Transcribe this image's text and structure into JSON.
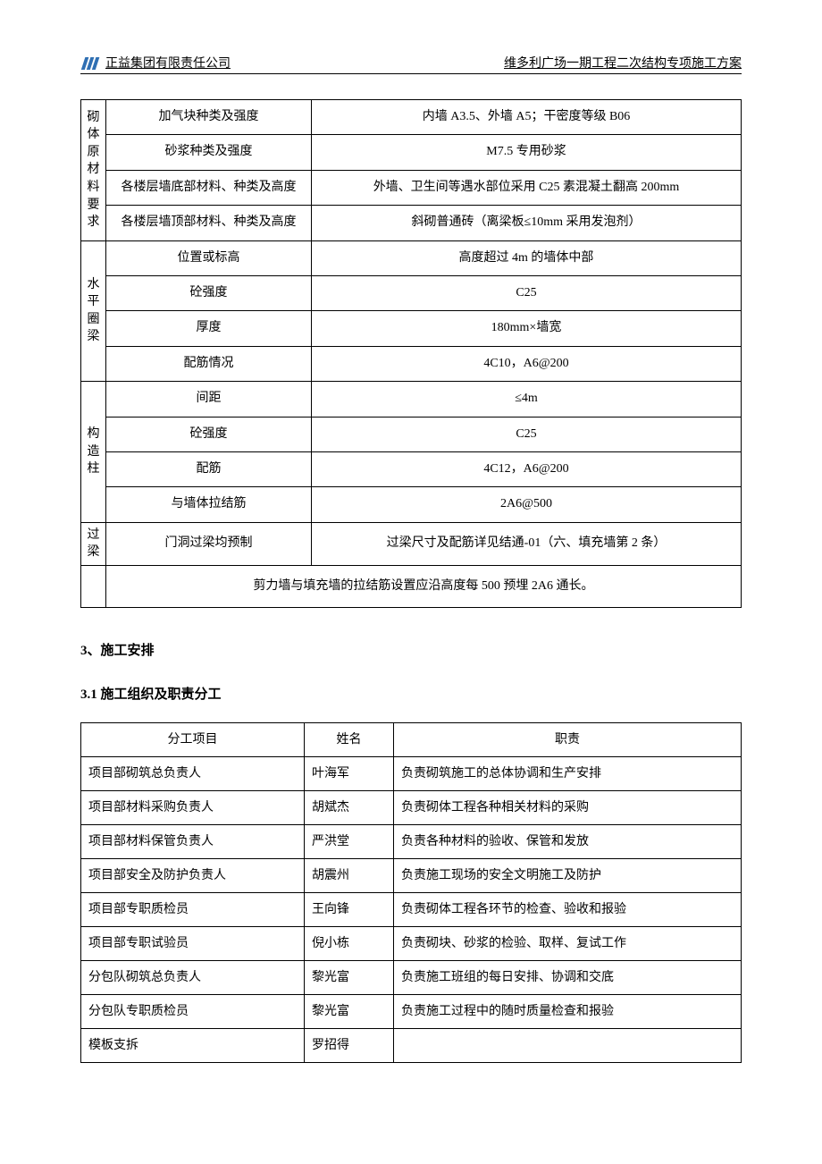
{
  "header": {
    "company": "正益集团有限责任公司",
    "project": "维多利广场一期工程二次结构专项施工方案",
    "logo_color_left": "#2f6fb3",
    "logo_color_right": "#2f6fb3"
  },
  "spec_table": {
    "groups": [
      {
        "label": "砌\n体\n原\n材\n料\n要\n求",
        "rows": [
          {
            "param": "加气块种类及强度",
            "value": "内墙 A3.5、外墙 A5；干密度等级 B06"
          },
          {
            "param": "砂浆种类及强度",
            "value": "M7.5 专用砂浆"
          },
          {
            "param": "各楼层墙底部材料、种类及高度",
            "value": "外墙、卫生间等遇水部位采用 C25 素混凝土翻高 200mm"
          },
          {
            "param": "各楼层墙顶部材料、种类及高度",
            "value": "斜砌普通砖（离梁板≤10mm 采用发泡剂）"
          }
        ]
      },
      {
        "label": "水\n平\n圈\n梁",
        "rows": [
          {
            "param": "位置或标高",
            "value": "高度超过 4m 的墙体中部"
          },
          {
            "param": "砼强度",
            "value": "C25"
          },
          {
            "param": "厚度",
            "value": "180mm×墙宽"
          },
          {
            "param": "配筋情况",
            "value": "4C10，A6@200"
          }
        ]
      },
      {
        "label": "构\n造\n柱",
        "rows": [
          {
            "param": "间距",
            "value": "≤4m"
          },
          {
            "param": "砼强度",
            "value": "C25"
          },
          {
            "param": "配筋",
            "value": "4C12，A6@200"
          },
          {
            "param": "与墙体拉结筋",
            "value": "2A6@500"
          }
        ]
      },
      {
        "label": "过\n梁",
        "rows": [
          {
            "param": "门洞过梁均预制",
            "value": "过梁尺寸及配筋详见结通-01（六、填充墙第 2 条）"
          }
        ]
      }
    ],
    "note": "剪力墙与填充墙的拉结筋设置应沿高度每 500 预埋 2A6 通长。"
  },
  "section3": {
    "title": "3、施工安排",
    "sub": "3.1 施工组织及职责分工"
  },
  "roles_table": {
    "headers": {
      "c1": "分工项目",
      "c2": "姓名",
      "c3": "职责"
    },
    "rows": [
      {
        "role": "项目部砌筑总负责人",
        "name": "叶海军",
        "duty": "负责砌筑施工的总体协调和生产安排"
      },
      {
        "role": "项目部材料采购负责人",
        "name": "胡斌杰",
        "duty": "负责砌体工程各种相关材料的采购"
      },
      {
        "role": "项目部材料保管负责人",
        "name": "严洪堂",
        "duty": "负责各种材料的验收、保管和发放"
      },
      {
        "role": "项目部安全及防护负责人",
        "name": "胡震州",
        "duty": "负责施工现场的安全文明施工及防护"
      },
      {
        "role": "项目部专职质检员",
        "name": "王向锋",
        "duty": "负责砌体工程各环节的检查、验收和报验"
      },
      {
        "role": "项目部专职试验员",
        "name": "倪小栋",
        "duty": "负责砌块、砂浆的检验、取样、复试工作"
      },
      {
        "role": "分包队砌筑总负责人",
        "name": "黎光富",
        "duty": "负责施工班组的每日安排、协调和交底"
      },
      {
        "role": "分包队专职质检员",
        "name": "黎光富",
        "duty": "负责施工过程中的随时质量检查和报验"
      },
      {
        "role": "模板支拆",
        "name": "罗招得",
        "duty": ""
      }
    ]
  }
}
